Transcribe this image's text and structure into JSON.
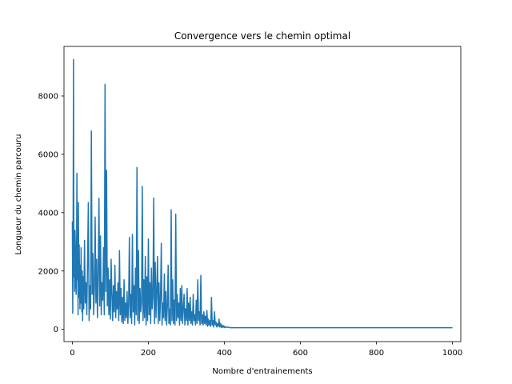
{
  "chart_data": {
    "type": "line",
    "title": "Convergence vers le chemin optimal",
    "xlabel": "Nombre d'entrainements",
    "ylabel": "Longueur du chemin parcouru",
    "xlim": [
      -22,
      1022
    ],
    "ylim": [
      -420,
      9700
    ],
    "x_ticks": [
      0,
      200,
      400,
      600,
      800,
      1000
    ],
    "y_ticks": [
      0,
      2000,
      4000,
      6000,
      8000
    ],
    "grid": false,
    "legend": "none",
    "series": [
      {
        "color": "#1f77b4",
        "points": [
          [
            0,
            3700
          ],
          [
            1,
            550
          ],
          [
            2,
            3500
          ],
          [
            3,
            9250
          ],
          [
            4,
            1800
          ],
          [
            5,
            2600
          ],
          [
            6,
            1300
          ],
          [
            7,
            3400
          ],
          [
            8,
            2800
          ],
          [
            9,
            1500
          ],
          [
            10,
            1200
          ],
          [
            11,
            2400
          ],
          [
            12,
            5350
          ],
          [
            13,
            1700
          ],
          [
            14,
            3100
          ],
          [
            15,
            500
          ],
          [
            16,
            4350
          ],
          [
            17,
            1100
          ],
          [
            18,
            2900
          ],
          [
            19,
            1600
          ],
          [
            20,
            700
          ],
          [
            21,
            2200
          ],
          [
            22,
            900
          ],
          [
            23,
            2800
          ],
          [
            24,
            1400
          ],
          [
            25,
            600
          ],
          [
            26,
            2000
          ],
          [
            27,
            300
          ],
          [
            28,
            1800
          ],
          [
            30,
            700
          ],
          [
            32,
            3050
          ],
          [
            34,
            900
          ],
          [
            36,
            1600
          ],
          [
            38,
            500
          ],
          [
            40,
            2300
          ],
          [
            42,
            4350
          ],
          [
            44,
            300
          ],
          [
            46,
            1500
          ],
          [
            48,
            700
          ],
          [
            50,
            6800
          ],
          [
            52,
            1200
          ],
          [
            54,
            2600
          ],
          [
            56,
            500
          ],
          [
            58,
            1400
          ],
          [
            60,
            3850
          ],
          [
            62,
            900
          ],
          [
            64,
            2400
          ],
          [
            66,
            400
          ],
          [
            68,
            1900
          ],
          [
            70,
            4500
          ],
          [
            72,
            800
          ],
          [
            74,
            3200
          ],
          [
            76,
            500
          ],
          [
            78,
            1600
          ],
          [
            80,
            1000
          ],
          [
            82,
            2800
          ],
          [
            84,
            500
          ],
          [
            86,
            8400
          ],
          [
            88,
            1300
          ],
          [
            90,
            5450
          ],
          [
            92,
            800
          ],
          [
            94,
            2100
          ],
          [
            96,
            500
          ],
          [
            98,
            1700
          ],
          [
            100,
            350
          ],
          [
            102,
            2400
          ],
          [
            104,
            1200
          ],
          [
            106,
            300
          ],
          [
            108,
            1500
          ],
          [
            110,
            600
          ],
          [
            112,
            2200
          ],
          [
            114,
            400
          ],
          [
            116,
            1300
          ],
          [
            118,
            700
          ],
          [
            120,
            1600
          ],
          [
            122,
            300
          ],
          [
            124,
            2700
          ],
          [
            126,
            500
          ],
          [
            128,
            1400
          ],
          [
            130,
            250
          ],
          [
            132,
            1100
          ],
          [
            134,
            200
          ],
          [
            136,
            1700
          ],
          [
            138,
            300
          ],
          [
            140,
            900
          ],
          [
            142,
            400
          ],
          [
            144,
            1300
          ],
          [
            146,
            200
          ],
          [
            148,
            850
          ],
          [
            150,
            3150
          ],
          [
            152,
            400
          ],
          [
            154,
            1200
          ],
          [
            156,
            200
          ],
          [
            158,
            3250
          ],
          [
            160,
            600
          ],
          [
            162,
            1500
          ],
          [
            164,
            150
          ],
          [
            166,
            2100
          ],
          [
            168,
            500
          ],
          [
            170,
            5550
          ],
          [
            172,
            300
          ],
          [
            174,
            2700
          ],
          [
            176,
            200
          ],
          [
            178,
            1400
          ],
          [
            180,
            600
          ],
          [
            182,
            900
          ],
          [
            184,
            4900
          ],
          [
            186,
            300
          ],
          [
            188,
            1700
          ],
          [
            190,
            400
          ],
          [
            192,
            2500
          ],
          [
            194,
            150
          ],
          [
            196,
            1800
          ],
          [
            198,
            300
          ],
          [
            200,
            3100
          ],
          [
            202,
            500
          ],
          [
            204,
            1600
          ],
          [
            206,
            200
          ],
          [
            208,
            2100
          ],
          [
            210,
            700
          ],
          [
            212,
            1100
          ],
          [
            214,
            4500
          ],
          [
            216,
            200
          ],
          [
            218,
            2300
          ],
          [
            220,
            400
          ],
          [
            222,
            1300
          ],
          [
            224,
            2500
          ],
          [
            226,
            200
          ],
          [
            228,
            1600
          ],
          [
            230,
            300
          ],
          [
            232,
            1100
          ],
          [
            234,
            2950
          ],
          [
            236,
            150
          ],
          [
            238,
            900
          ],
          [
            240,
            400
          ],
          [
            242,
            1900
          ],
          [
            244,
            300
          ],
          [
            246,
            1300
          ],
          [
            248,
            150
          ],
          [
            250,
            800
          ],
          [
            252,
            2200
          ],
          [
            254,
            200
          ],
          [
            256,
            700
          ],
          [
            258,
            150
          ],
          [
            260,
            4100
          ],
          [
            262,
            300
          ],
          [
            264,
            1700
          ],
          [
            266,
            200
          ],
          [
            268,
            1000
          ],
          [
            270,
            150
          ],
          [
            272,
            3950
          ],
          [
            274,
            300
          ],
          [
            276,
            1200
          ],
          [
            278,
            400
          ],
          [
            280,
            900
          ],
          [
            282,
            150
          ],
          [
            284,
            1400
          ],
          [
            286,
            300
          ],
          [
            288,
            1500
          ],
          [
            290,
            200
          ],
          [
            292,
            700
          ],
          [
            294,
            1200
          ],
          [
            296,
            150
          ],
          [
            298,
            700
          ],
          [
            300,
            300
          ],
          [
            302,
            1400
          ],
          [
            304,
            150
          ],
          [
            306,
            900
          ],
          [
            308,
            300
          ],
          [
            310,
            1100
          ],
          [
            312,
            200
          ],
          [
            314,
            600
          ],
          [
            316,
            150
          ],
          [
            318,
            1200
          ],
          [
            320,
            300
          ],
          [
            322,
            500
          ],
          [
            324,
            150
          ],
          [
            326,
            1000
          ],
          [
            328,
            200
          ],
          [
            330,
            1700
          ],
          [
            332,
            300
          ],
          [
            334,
            600
          ],
          [
            336,
            150
          ],
          [
            338,
            1850
          ],
          [
            340,
            200
          ],
          [
            342,
            500
          ],
          [
            344,
            150
          ],
          [
            346,
            600
          ],
          [
            348,
            200
          ],
          [
            350,
            450
          ],
          [
            352,
            150
          ],
          [
            354,
            650
          ],
          [
            356,
            100
          ],
          [
            358,
            350
          ],
          [
            360,
            150
          ],
          [
            362,
            300
          ],
          [
            364,
            100
          ],
          [
            366,
            1100
          ],
          [
            368,
            150
          ],
          [
            370,
            300
          ],
          [
            372,
            80
          ],
          [
            374,
            600
          ],
          [
            376,
            150
          ],
          [
            378,
            250
          ],
          [
            380,
            80
          ],
          [
            382,
            200
          ],
          [
            384,
            100
          ],
          [
            386,
            350
          ],
          [
            388,
            80
          ],
          [
            390,
            200
          ],
          [
            392,
            60
          ],
          [
            394,
            150
          ],
          [
            396,
            70
          ],
          [
            398,
            120
          ],
          [
            400,
            60
          ],
          [
            402,
            100
          ],
          [
            405,
            60
          ],
          [
            410,
            80
          ],
          [
            415,
            55
          ],
          [
            420,
            55
          ],
          [
            500,
            55
          ],
          [
            600,
            55
          ],
          [
            700,
            55
          ],
          [
            800,
            55
          ],
          [
            900,
            55
          ],
          [
            1000,
            55
          ]
        ]
      }
    ]
  }
}
